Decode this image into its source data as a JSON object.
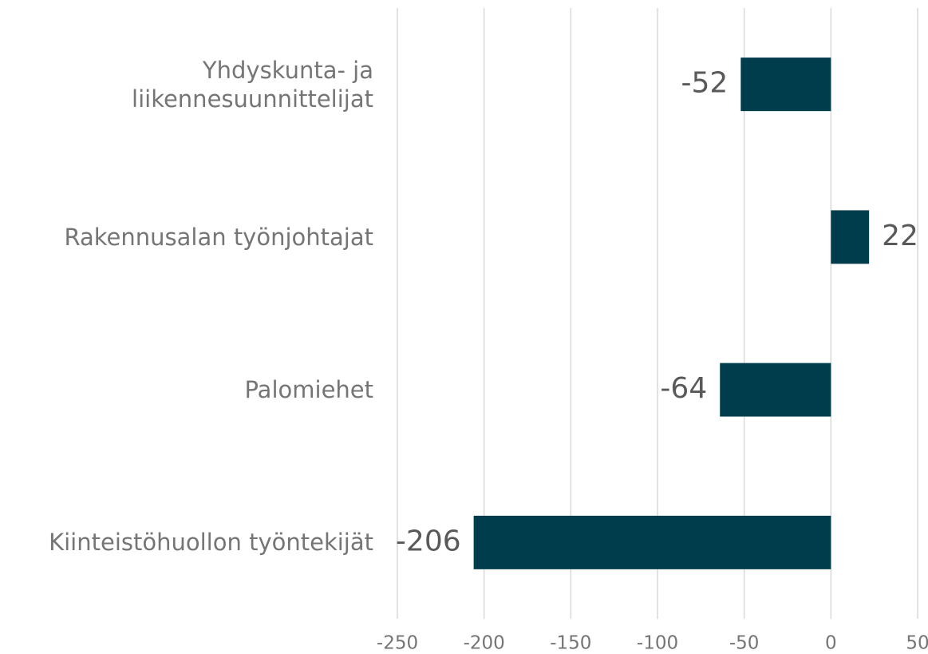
{
  "chart_data": {
    "type": "hbar",
    "categories": [
      "Yhdyskunta- ja liikennesuunnittelijat",
      "Rakennusalan työnjohtajat",
      "Palomiehet",
      "Kiinteistöhuollon työntekijät"
    ],
    "values": [
      -52,
      22,
      -64,
      -206
    ],
    "color": "#003d4c",
    "xlim": [
      -250,
      50
    ],
    "xticks": [
      -250,
      -200,
      -150,
      -100,
      -50,
      0,
      50
    ],
    "grid": true
  }
}
